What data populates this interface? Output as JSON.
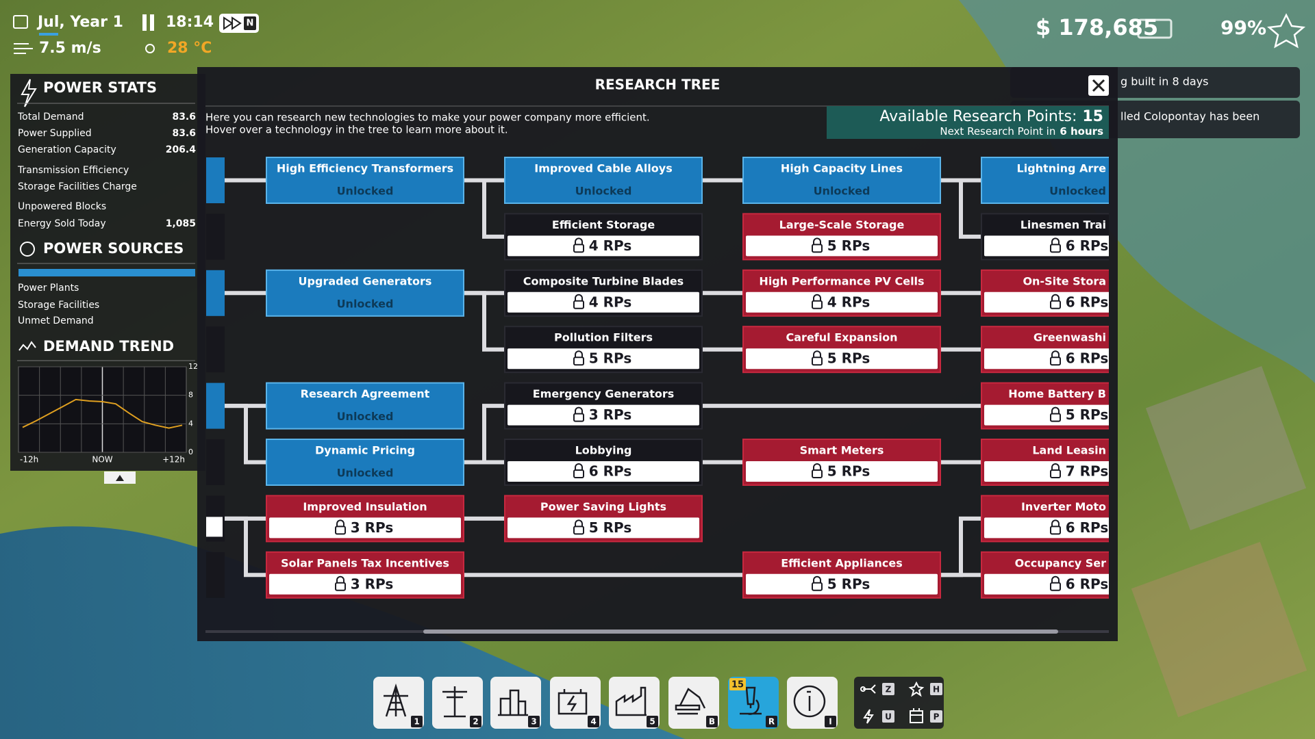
{
  "top_bar": {
    "date": "Jul, Year 1",
    "time": "18:14",
    "speed_key": "N",
    "wind": "7.5 m/s",
    "temperature": "28 °C",
    "money": "$ 178,685",
    "approval": "99%"
  },
  "notifications": [
    "g built in 8 days",
    "lled Colopontay has been"
  ],
  "power_stats": {
    "title": "POWER STATS",
    "rows": [
      {
        "label": "Total Demand",
        "value": "83.6"
      },
      {
        "label": "Power Supplied",
        "value": "83.6"
      },
      {
        "label": "Generation Capacity",
        "value": "206.4"
      },
      {
        "label": "Transmission Efficiency"
      },
      {
        "label": "Storage Facilities Charge"
      },
      {
        "label": "Unpowered Blocks"
      },
      {
        "label": "Energy Sold Today",
        "value": "1,085"
      }
    ]
  },
  "power_sources": {
    "title": "POWER SOURCES",
    "rows": [
      "Power Plants",
      "Storage Facilities",
      "Unmet Demand"
    ]
  },
  "demand_trend": {
    "title": "DEMAND TREND",
    "x_labels": [
      "-12h",
      "NOW",
      "+12h"
    ],
    "values": [
      3.5,
      4.4,
      5.4,
      6.4,
      7.4,
      7.2,
      7.1,
      6.8,
      5.5,
      4.3,
      3.8,
      3.4,
      3.8
    ],
    "ylim": [
      0,
      12
    ],
    "yticks": [
      0,
      4,
      8,
      12
    ]
  },
  "research_tree": {
    "title": "RESEARCH TREE",
    "description": [
      "Here you can research new technologies to make your power company more efficient.",
      "Hover over a technology in the tree to learn more about it."
    ],
    "points_label": "Available Research Points:",
    "points": "15",
    "next_label": "Next Research Point in",
    "next_value": "6 hours",
    "nodes": [
      {
        "name": "High Efficiency Transformers",
        "status": "Unlocked",
        "state": "unlocked"
      },
      {
        "name": "Upgraded Generators",
        "status": "Unlocked",
        "state": "unlocked"
      },
      {
        "name": "Research Agreement",
        "status": "Unlocked",
        "state": "unlocked"
      },
      {
        "name": "Dynamic Pricing",
        "status": "Unlocked",
        "state": "unlocked"
      },
      {
        "name": "Improved Insulation",
        "status": "3 RPs",
        "state": "locked"
      },
      {
        "name": "Solar Panels Tax Incentives",
        "status": "3 RPs",
        "state": "locked"
      },
      {
        "name": "Improved Cable Alloys",
        "status": "Unlocked",
        "state": "unlocked"
      },
      {
        "name": "Efficient Storage",
        "status": "4 RPs",
        "state": "available"
      },
      {
        "name": "Composite Turbine Blades",
        "status": "4 RPs",
        "state": "available"
      },
      {
        "name": "Pollution Filters",
        "status": "5 RPs",
        "state": "available"
      },
      {
        "name": "Emergency Generators",
        "status": "3 RPs",
        "state": "available"
      },
      {
        "name": "Lobbying",
        "status": "6 RPs",
        "state": "available"
      },
      {
        "name": "Power Saving Lights",
        "status": "5 RPs",
        "state": "locked"
      },
      {
        "name": "High Capacity Lines",
        "status": "Unlocked",
        "state": "unlocked"
      },
      {
        "name": "Large-Scale Storage",
        "status": "5 RPs",
        "state": "locked"
      },
      {
        "name": "High Performance PV Cells",
        "status": "4 RPs",
        "state": "locked"
      },
      {
        "name": "Careful Expansion",
        "status": "5 RPs",
        "state": "locked"
      },
      {
        "name": "Smart Meters",
        "status": "5 RPs",
        "state": "locked"
      },
      {
        "name": "Efficient Appliances",
        "status": "5 RPs",
        "state": "locked"
      },
      {
        "name": "Lightning Arre",
        "status": "Unlocked",
        "state": "unlocked"
      },
      {
        "name": "Linesmen Trai",
        "status": "6 RPs",
        "state": "available"
      },
      {
        "name": "On-Site Stora",
        "status": "6 RPs",
        "state": "locked"
      },
      {
        "name": "Greenwashi",
        "status": "6 RPs",
        "state": "locked"
      },
      {
        "name": "Home Battery B",
        "status": "5 RPs",
        "state": "locked"
      },
      {
        "name": "Land Leasin",
        "status": "7 RPs",
        "state": "locked"
      },
      {
        "name": "Inverter Moto",
        "status": "6 RPs",
        "state": "locked"
      },
      {
        "name": "Occupancy Ser",
        "status": "6 RPs",
        "state": "locked"
      }
    ]
  },
  "toolbar": {
    "hotkeys": [
      "1",
      "2",
      "3",
      "4",
      "5",
      "B",
      "R",
      "I"
    ],
    "research_badge": "15",
    "small_hotkeys": [
      "Z",
      "H",
      "U",
      "P"
    ]
  }
}
